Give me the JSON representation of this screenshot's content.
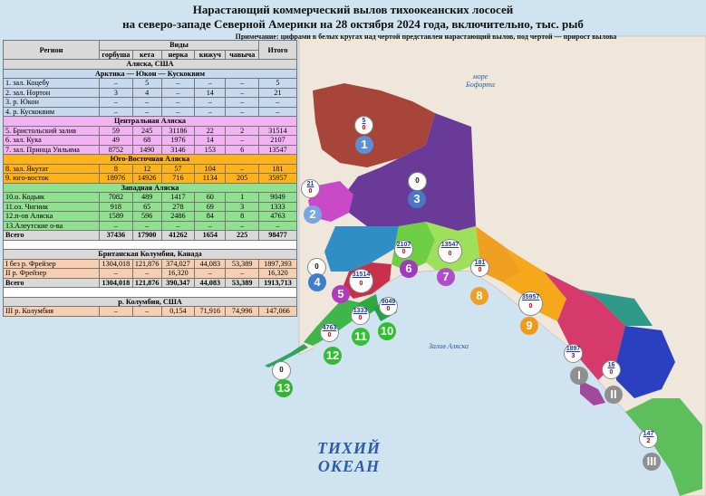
{
  "title_line1": "Нарастающий коммерческий вылов тихоокеанских лососей",
  "title_line2": "на северо-западе Северной Америки на 28 октября 2024 года, включительно, тыс. рыб",
  "note": "Примечание: цифрами в белых кругах над чертой представлен нарастающий вылов, под чертой — прирост вылова",
  "table": {
    "header_region": "Регион",
    "header_species": "Виды",
    "header_total": "Итого",
    "species": [
      "горбуша",
      "кета",
      "нерка",
      "кижуч",
      "чавыча"
    ],
    "usa_header": "Аляска, США",
    "sections": [
      {
        "name": "Арктика — Юкон — Кускоквим",
        "rows": [
          [
            "1. зал. Коцебу",
            "–",
            "5",
            "–",
            "–",
            "–",
            "5"
          ],
          [
            "2. зал. Нортон",
            "3",
            "4",
            "–",
            "14",
            "–",
            "21"
          ],
          [
            "3. р. Юкон",
            "–",
            "–",
            "–",
            "–",
            "–",
            "–"
          ],
          [
            "4. р. Кускоквим",
            "–",
            "–",
            "–",
            "–",
            "–",
            "–"
          ]
        ]
      },
      {
        "name": "Центральная Аляска",
        "rows": [
          [
            "5. Бристольский залив",
            "59",
            "245",
            "31186",
            "22",
            "2",
            "31514"
          ],
          [
            "6. зал. Кука",
            "49",
            "68",
            "1976",
            "14",
            "–",
            "2107"
          ],
          [
            "7. зал. Принца Уильяма",
            "8752",
            "1490",
            "3146",
            "153",
            "6",
            "13547"
          ]
        ]
      },
      {
        "name": "Юго-Восточная Аляска",
        "rows": [
          [
            "8. зал. Якутат",
            "8",
            "12",
            "57",
            "104",
            "–",
            "181"
          ],
          [
            "9. юго-восток",
            "18976",
            "14926",
            "716",
            "1134",
            "205",
            "35957"
          ]
        ]
      },
      {
        "name": "Западная Аляска",
        "rows": [
          [
            "10.о. Кодьяк",
            "7082",
            "489",
            "1417",
            "60",
            "1",
            "9049"
          ],
          [
            "11.оз. Чигник",
            "918",
            "65",
            "278",
            "69",
            "3",
            "1333"
          ],
          [
            "12.п-ов Аляска",
            "1589",
            "596",
            "2486",
            "84",
            "8",
            "4763"
          ],
          [
            "13.Алеутские о-ва",
            "–",
            "–",
            "–",
            "–",
            "–",
            "–"
          ]
        ]
      }
    ],
    "usa_total": [
      "Всего",
      "37436",
      "17900",
      "41262",
      "1654",
      "225",
      "98477"
    ],
    "bc_header": "Британская Колумбия, Канада",
    "bc_rows": [
      [
        "I без р. Фрейзер",
        "1304,018",
        "121,876",
        "374,027",
        "44,083",
        "53,389",
        "1897,393"
      ],
      [
        "II р. Фрейзер",
        "–",
        "–",
        "16,320",
        "–",
        "–",
        "16,320"
      ]
    ],
    "bc_total": [
      "Всего",
      "1304,018",
      "121,876",
      "390,347",
      "44,083",
      "53,389",
      "1913,713"
    ],
    "col_header": "р. Колумбия, США",
    "col_rows": [
      [
        "III р. Колумбия",
        "–",
        "–",
        "0,154",
        "71,916",
        "74,996",
        "147,066"
      ]
    ]
  },
  "map_labels": {
    "beaufort": "море Бофорта",
    "gulf": "Залив Аляска",
    "ocean": "ТИХИЙ ОКЕАН"
  },
  "circles": [
    {
      "id": "1",
      "top": "5",
      "bottom": "0"
    },
    {
      "id": "2",
      "top": "21",
      "bottom": "0"
    },
    {
      "id": "3",
      "top": "0",
      "bottom": ""
    },
    {
      "id": "4",
      "top": "0",
      "bottom": ""
    },
    {
      "id": "5",
      "top": "31514",
      "bottom": "0"
    },
    {
      "id": "6",
      "top": "2107",
      "bottom": "0"
    },
    {
      "id": "7",
      "top": "13547",
      "bottom": "0"
    },
    {
      "id": "8",
      "top": "181",
      "bottom": "0"
    },
    {
      "id": "9",
      "top": "35957",
      "bottom": "0"
    },
    {
      "id": "10",
      "top": "9049",
      "bottom": "0"
    },
    {
      "id": "11",
      "top": "1333",
      "bottom": "0"
    },
    {
      "id": "12",
      "top": "4763",
      "bottom": "0"
    },
    {
      "id": "13",
      "top": "0",
      "bottom": ""
    },
    {
      "id": "I",
      "top": "1897",
      "bottom": "3"
    },
    {
      "id": "II",
      "top": "16",
      "bottom": "0"
    },
    {
      "id": "III",
      "top": "147",
      "bottom": "2"
    }
  ],
  "badges": [
    {
      "label": "1",
      "color": "#5b8fd6"
    },
    {
      "label": "2",
      "color": "#7aa6df"
    },
    {
      "label": "3",
      "color": "#4a78c4"
    },
    {
      "label": "4",
      "color": "#3e7fc8"
    },
    {
      "label": "5",
      "color": "#b23bbd"
    },
    {
      "label": "6",
      "color": "#a03cba"
    },
    {
      "label": "7",
      "color": "#b04ec8"
    },
    {
      "label": "8",
      "color": "#f0a020"
    },
    {
      "label": "9",
      "color": "#f09a1a"
    },
    {
      "label": "10",
      "color": "#2fbf2f"
    },
    {
      "label": "11",
      "color": "#34c034"
    },
    {
      "label": "12",
      "color": "#33bb33"
    },
    {
      "label": "13",
      "color": "#2fb82f"
    },
    {
      "label": "I",
      "color": "#8f8f8f"
    },
    {
      "label": "II",
      "color": "#8f8f8f"
    },
    {
      "label": "III",
      "color": "#8f8f8f"
    }
  ],
  "colors": {
    "ocean": "#cfe3f1",
    "land": "#efe6dc",
    "arctic_rows": "#c7d9ef",
    "central_rows": "#f2b3f2",
    "southeast_rows": "#ffb319",
    "west_rows": "#8fe08f",
    "canada_rows": "#f7cfb0"
  }
}
